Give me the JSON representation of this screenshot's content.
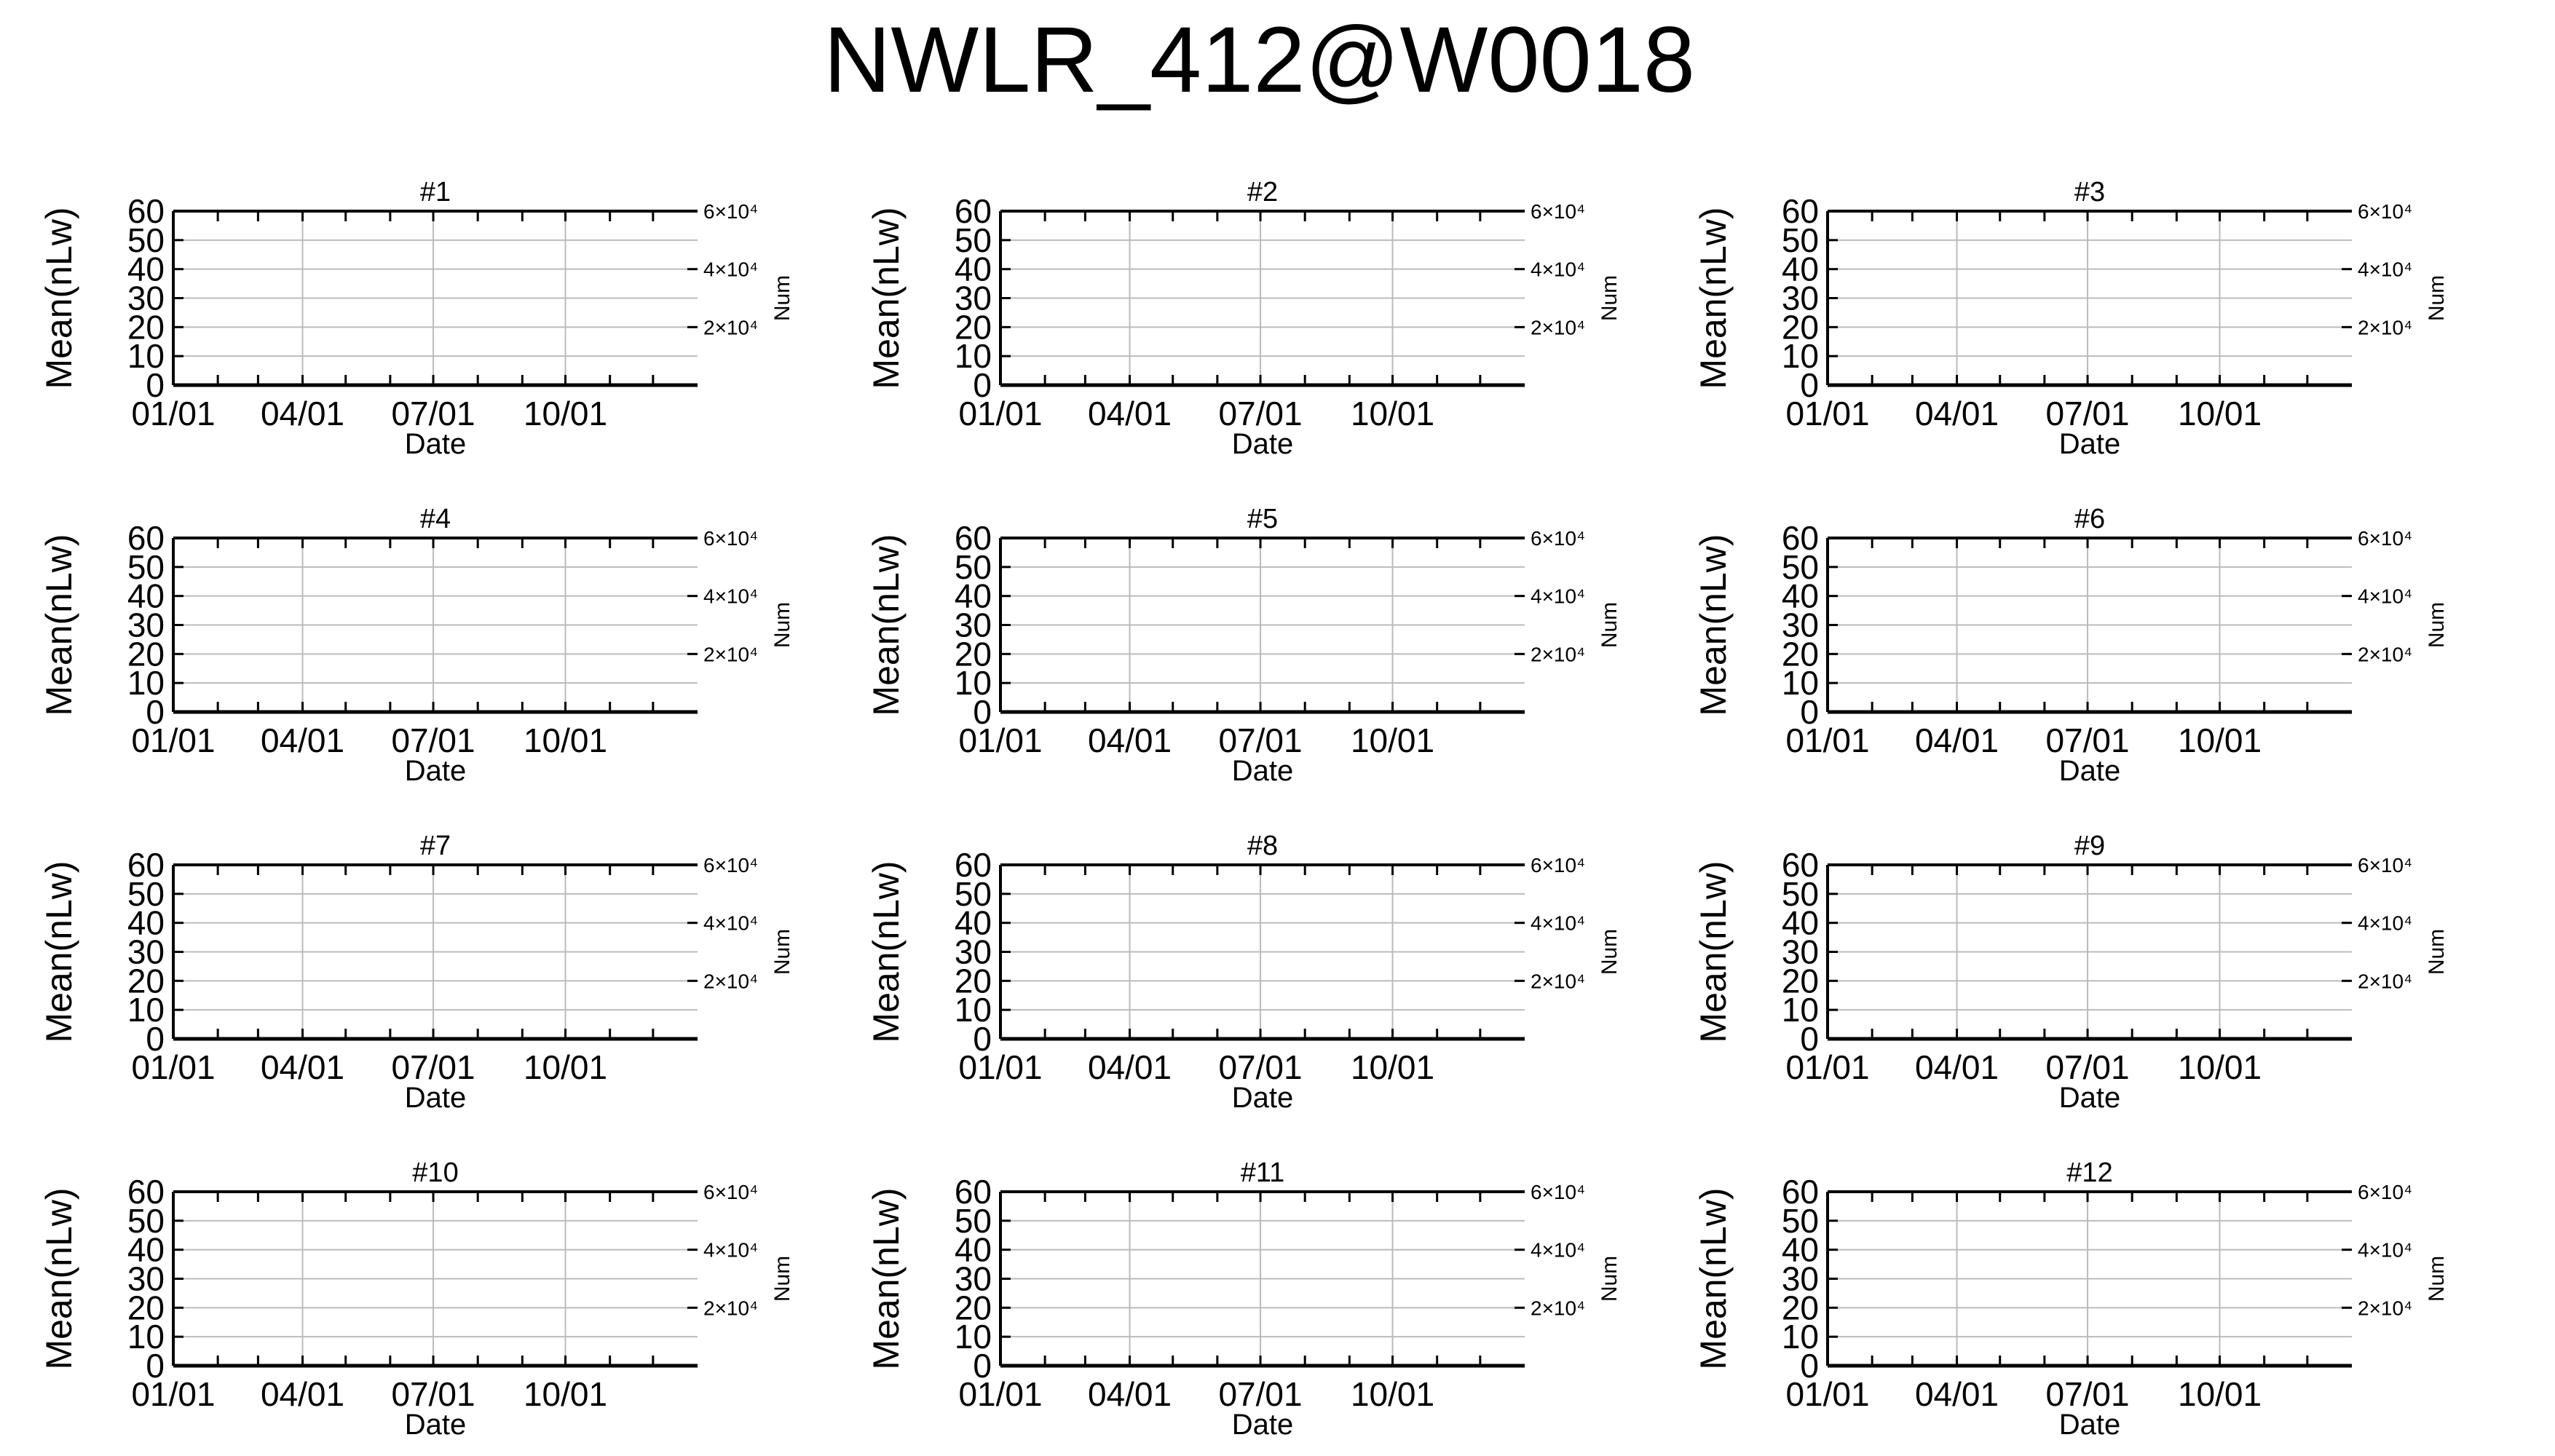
{
  "title": "NWLR_412@W0018",
  "colors": {
    "axis": "#000000",
    "grid": "#bbbbbb",
    "background": "#ffffff"
  },
  "chart_data": [
    {
      "type": "line",
      "title": "#1",
      "xlabel": "Date",
      "ylabel": "Mean(nLw)",
      "y2label": "Num",
      "x_tick_labels": [
        "01/01",
        "04/01",
        "07/01",
        "10/01"
      ],
      "x_range": [
        "01/01",
        "12/31"
      ],
      "ylim": [
        0,
        60
      ],
      "y_ticks": [
        "0",
        "10",
        "20",
        "30",
        "40",
        "50",
        "60"
      ],
      "y2lim": [
        0,
        60000
      ],
      "y2_ticks": [
        "2×10⁴",
        "4×10⁴",
        "6×10⁴"
      ],
      "grid": true,
      "series": []
    },
    {
      "type": "line",
      "title": "#2",
      "xlabel": "Date",
      "ylabel": "Mean(nLw)",
      "y2label": "Num",
      "x_tick_labels": [
        "01/01",
        "04/01",
        "07/01",
        "10/01"
      ],
      "x_range": [
        "01/01",
        "12/31"
      ],
      "ylim": [
        0,
        60
      ],
      "y_ticks": [
        "0",
        "10",
        "20",
        "30",
        "40",
        "50",
        "60"
      ],
      "y2lim": [
        0,
        60000
      ],
      "y2_ticks": [
        "2×10⁴",
        "4×10⁴",
        "6×10⁴"
      ],
      "grid": true,
      "series": []
    },
    {
      "type": "line",
      "title": "#3",
      "xlabel": "Date",
      "ylabel": "Mean(nLw)",
      "y2label": "Num",
      "x_tick_labels": [
        "01/01",
        "04/01",
        "07/01",
        "10/01"
      ],
      "x_range": [
        "01/01",
        "12/31"
      ],
      "ylim": [
        0,
        60
      ],
      "y_ticks": [
        "0",
        "10",
        "20",
        "30",
        "40",
        "50",
        "60"
      ],
      "y2lim": [
        0,
        60000
      ],
      "y2_ticks": [
        "2×10⁴",
        "4×10⁴",
        "6×10⁴"
      ],
      "grid": true,
      "series": []
    },
    {
      "type": "line",
      "title": "#4",
      "xlabel": "Date",
      "ylabel": "Mean(nLw)",
      "y2label": "Num",
      "x_tick_labels": [
        "01/01",
        "04/01",
        "07/01",
        "10/01"
      ],
      "x_range": [
        "01/01",
        "12/31"
      ],
      "ylim": [
        0,
        60
      ],
      "y_ticks": [
        "0",
        "10",
        "20",
        "30",
        "40",
        "50",
        "60"
      ],
      "y2lim": [
        0,
        60000
      ],
      "y2_ticks": [
        "2×10⁴",
        "4×10⁴",
        "6×10⁴"
      ],
      "grid": true,
      "series": []
    },
    {
      "type": "line",
      "title": "#5",
      "xlabel": "Date",
      "ylabel": "Mean(nLw)",
      "y2label": "Num",
      "x_tick_labels": [
        "01/01",
        "04/01",
        "07/01",
        "10/01"
      ],
      "x_range": [
        "01/01",
        "12/31"
      ],
      "ylim": [
        0,
        60
      ],
      "y_ticks": [
        "0",
        "10",
        "20",
        "30",
        "40",
        "50",
        "60"
      ],
      "y2lim": [
        0,
        60000
      ],
      "y2_ticks": [
        "2×10⁴",
        "4×10⁴",
        "6×10⁴"
      ],
      "grid": true,
      "series": []
    },
    {
      "type": "line",
      "title": "#6",
      "xlabel": "Date",
      "ylabel": "Mean(nLw)",
      "y2label": "Num",
      "x_tick_labels": [
        "01/01",
        "04/01",
        "07/01",
        "10/01"
      ],
      "x_range": [
        "01/01",
        "12/31"
      ],
      "ylim": [
        0,
        60
      ],
      "y_ticks": [
        "0",
        "10",
        "20",
        "30",
        "40",
        "50",
        "60"
      ],
      "y2lim": [
        0,
        60000
      ],
      "y2_ticks": [
        "2×10⁴",
        "4×10⁴",
        "6×10⁴"
      ],
      "grid": true,
      "series": []
    },
    {
      "type": "line",
      "title": "#7",
      "xlabel": "Date",
      "ylabel": "Mean(nLw)",
      "y2label": "Num",
      "x_tick_labels": [
        "01/01",
        "04/01",
        "07/01",
        "10/01"
      ],
      "x_range": [
        "01/01",
        "12/31"
      ],
      "ylim": [
        0,
        60
      ],
      "y_ticks": [
        "0",
        "10",
        "20",
        "30",
        "40",
        "50",
        "60"
      ],
      "y2lim": [
        0,
        60000
      ],
      "y2_ticks": [
        "2×10⁴",
        "4×10⁴",
        "6×10⁴"
      ],
      "grid": true,
      "series": []
    },
    {
      "type": "line",
      "title": "#8",
      "xlabel": "Date",
      "ylabel": "Mean(nLw)",
      "y2label": "Num",
      "x_tick_labels": [
        "01/01",
        "04/01",
        "07/01",
        "10/01"
      ],
      "x_range": [
        "01/01",
        "12/31"
      ],
      "ylim": [
        0,
        60
      ],
      "y_ticks": [
        "0",
        "10",
        "20",
        "30",
        "40",
        "50",
        "60"
      ],
      "y2lim": [
        0,
        60000
      ],
      "y2_ticks": [
        "2×10⁴",
        "4×10⁴",
        "6×10⁴"
      ],
      "grid": true,
      "series": []
    },
    {
      "type": "line",
      "title": "#9",
      "xlabel": "Date",
      "ylabel": "Mean(nLw)",
      "y2label": "Num",
      "x_tick_labels": [
        "01/01",
        "04/01",
        "07/01",
        "10/01"
      ],
      "x_range": [
        "01/01",
        "12/31"
      ],
      "ylim": [
        0,
        60
      ],
      "y_ticks": [
        "0",
        "10",
        "20",
        "30",
        "40",
        "50",
        "60"
      ],
      "y2lim": [
        0,
        60000
      ],
      "y2_ticks": [
        "2×10⁴",
        "4×10⁴",
        "6×10⁴"
      ],
      "grid": true,
      "series": []
    },
    {
      "type": "line",
      "title": "#10",
      "xlabel": "Date",
      "ylabel": "Mean(nLw)",
      "y2label": "Num",
      "x_tick_labels": [
        "01/01",
        "04/01",
        "07/01",
        "10/01"
      ],
      "x_range": [
        "01/01",
        "12/31"
      ],
      "ylim": [
        0,
        60
      ],
      "y_ticks": [
        "0",
        "10",
        "20",
        "30",
        "40",
        "50",
        "60"
      ],
      "y2lim": [
        0,
        60000
      ],
      "y2_ticks": [
        "2×10⁴",
        "4×10⁴",
        "6×10⁴"
      ],
      "grid": true,
      "series": []
    },
    {
      "type": "line",
      "title": "#11",
      "xlabel": "Date",
      "ylabel": "Mean(nLw)",
      "y2label": "Num",
      "x_tick_labels": [
        "01/01",
        "04/01",
        "07/01",
        "10/01"
      ],
      "x_range": [
        "01/01",
        "12/31"
      ],
      "ylim": [
        0,
        60
      ],
      "y_ticks": [
        "0",
        "10",
        "20",
        "30",
        "40",
        "50",
        "60"
      ],
      "y2lim": [
        0,
        60000
      ],
      "y2_ticks": [
        "2×10⁴",
        "4×10⁴",
        "6×10⁴"
      ],
      "grid": true,
      "series": []
    },
    {
      "type": "line",
      "title": "#12",
      "xlabel": "Date",
      "ylabel": "Mean(nLw)",
      "y2label": "Num",
      "x_tick_labels": [
        "01/01",
        "04/01",
        "07/01",
        "10/01"
      ],
      "x_range": [
        "01/01",
        "12/31"
      ],
      "ylim": [
        0,
        60
      ],
      "y_ticks": [
        "0",
        "10",
        "20",
        "30",
        "40",
        "50",
        "60"
      ],
      "y2lim": [
        0,
        60000
      ],
      "y2_ticks": [
        "2×10⁴",
        "4×10⁴",
        "6×10⁴"
      ],
      "grid": true,
      "series": []
    }
  ]
}
